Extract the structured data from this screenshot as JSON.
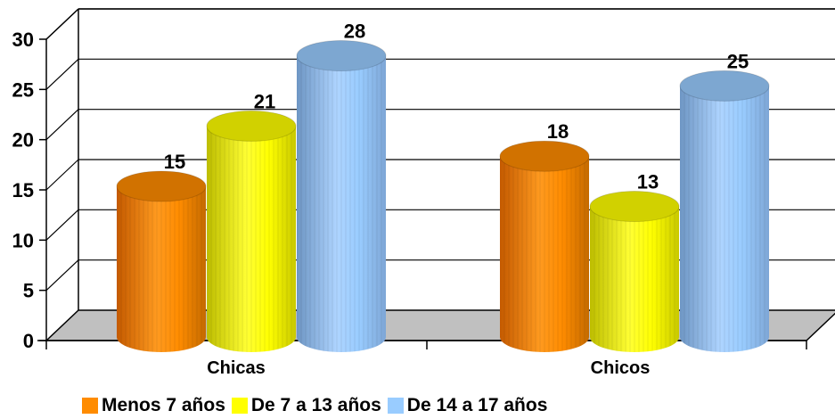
{
  "chart_data": {
    "type": "bar",
    "style": "3d-cylinder",
    "categories": [
      "Chicas",
      "Chicos"
    ],
    "series": [
      {
        "name": "Menos 7 años",
        "color": "#FF8C00",
        "values": [
          15,
          18
        ]
      },
      {
        "name": "De 7 a 13 años",
        "color": "#FFFF00",
        "values": [
          21,
          13
        ]
      },
      {
        "name": "De 14 a 17 años",
        "color": "#99CCFF",
        "values": [
          28,
          25
        ]
      }
    ],
    "yticks": [
      "0",
      "5",
      "10",
      "15",
      "20",
      "25",
      "30"
    ],
    "ylim": [
      0,
      30
    ],
    "grid": true,
    "legend_position": "bottom",
    "floor_color": "#C0C0C0"
  }
}
